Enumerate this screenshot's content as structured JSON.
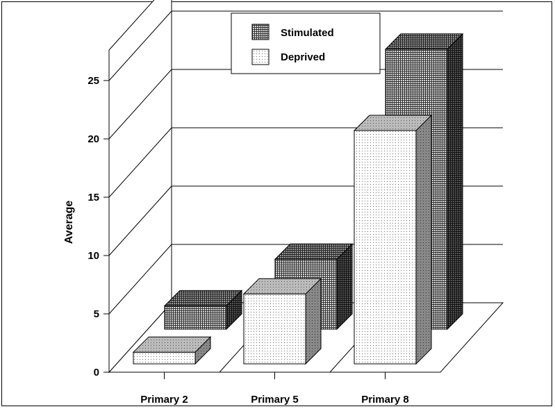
{
  "chart_data": {
    "type": "bar",
    "style": "3d-grouped",
    "title": "",
    "xlabel": "",
    "ylabel": "Average",
    "categories": [
      "Primary 2",
      "Primary 5",
      "Primary 8"
    ],
    "yticks": [
      "0",
      "5",
      "10",
      "15",
      "20",
      "25"
    ],
    "ylim": [
      0,
      25
    ],
    "grid": true,
    "legend_position": "top-center",
    "series": [
      {
        "name": "Stimulated",
        "values": [
          2,
          6,
          24
        ],
        "pattern": "grid",
        "color": "#8a8a8a"
      },
      {
        "name": "Deprived",
        "values": [
          1,
          6,
          20
        ],
        "pattern": "dots",
        "color": "#f2f2f2"
      }
    ]
  }
}
